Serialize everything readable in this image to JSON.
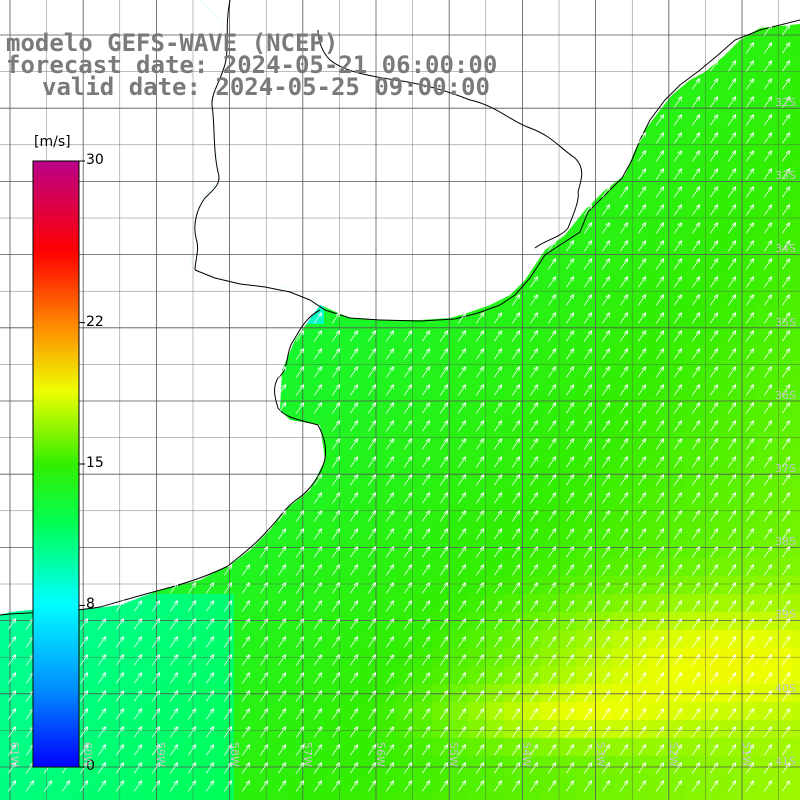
{
  "title": {
    "line1": "modelo GEFS-WAVE (NCEP)",
    "line2": "forecast date: 2024-05-21 06:00:00",
    "line3": "valid date: 2024-05-25 09:00:00"
  },
  "colorbar": {
    "unit": "[m/s]",
    "ticks": [
      {
        "value": 30,
        "label": "30"
      },
      {
        "value": 22,
        "label": "22"
      },
      {
        "value": 15,
        "label": "15"
      },
      {
        "value": 8,
        "label": "8"
      },
      {
        "value": 0,
        "label": "0"
      }
    ],
    "min": 0,
    "max": 30,
    "colors": [
      "#0000ff",
      "#00aaff",
      "#00ffff",
      "#00ff66",
      "#00dd00",
      "#66ee00",
      "#ffff00",
      "#ff9900",
      "#ff0000",
      "#ee0055",
      "#bb0088"
    ]
  },
  "map": {
    "lon_range": [
      -61.5,
      -50.5
    ],
    "lat_range": [
      -41.2,
      -30.2
    ],
    "lat_labels": [
      "32S",
      "33S",
      "34S",
      "35S",
      "36S",
      "37S",
      "38S",
      "39S",
      "40S",
      "41S"
    ],
    "lon_labels": [
      "61W",
      "60W",
      "59W",
      "58W",
      "57W",
      "56W",
      "55W",
      "54W",
      "53W",
      "52W",
      "51W"
    ],
    "vector_direction": "toward north-east",
    "colors": {
      "land": "#ffffff",
      "coastline": "#000000",
      "grid": "#555555",
      "arrow": "#ffffff"
    }
  }
}
